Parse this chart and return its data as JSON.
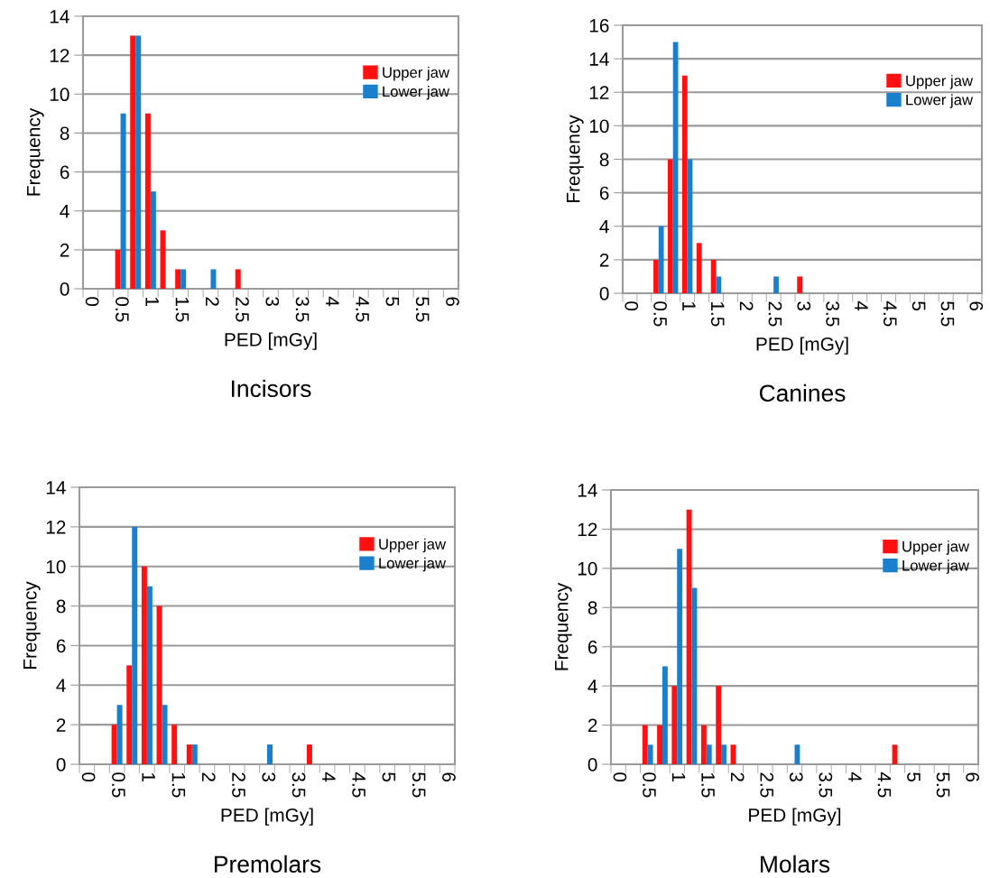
{
  "chart_data": [
    {
      "type": "bar",
      "title": "Incisors",
      "xlabel": "PED [mGy]",
      "ylabel": "Frequency",
      "categories": [
        "0",
        null,
        "0.5",
        null,
        "1",
        null,
        "1.5",
        null,
        "2",
        null,
        "2.5",
        null,
        "3",
        null,
        "3.5",
        null,
        "4",
        null,
        "4.5",
        null,
        "5",
        null,
        "5.5",
        null,
        "6"
      ],
      "ylim": [
        0,
        14
      ],
      "yticks": [
        0,
        2,
        4,
        6,
        8,
        10,
        12,
        14
      ],
      "grid": "y",
      "legend": "top right",
      "series": [
        {
          "name": "Upper jaw",
          "color": "#ff1111",
          "values": [
            0,
            0,
            2,
            13,
            9,
            3,
            1,
            0,
            0,
            0,
            1,
            0,
            0,
            0,
            0,
            0,
            0,
            0,
            0,
            0,
            0,
            0,
            0,
            0,
            0
          ]
        },
        {
          "name": "Lower jaw",
          "color": "#1a7fcc",
          "values": [
            0,
            0,
            9,
            13,
            5,
            0,
            1,
            0,
            1,
            0,
            0,
            0,
            0,
            0,
            0,
            0,
            0,
            0,
            0,
            0,
            0,
            0,
            0,
            0,
            0
          ]
        }
      ]
    },
    {
      "type": "bar",
      "title": "Canines",
      "xlabel": "PED [mGy]",
      "ylabel": "Frequency",
      "categories": [
        "0",
        null,
        "0.5",
        null,
        "1",
        null,
        "1.5",
        null,
        "2",
        null,
        "2.5",
        null,
        "3",
        null,
        "3.5",
        null,
        "4",
        null,
        "4.5",
        null,
        "5",
        null,
        "5.5",
        null,
        "6"
      ],
      "ylim": [
        0,
        16
      ],
      "yticks": [
        0,
        2,
        4,
        6,
        8,
        10,
        12,
        14,
        16
      ],
      "grid": "y",
      "legend": "top right",
      "series": [
        {
          "name": "Upper jaw",
          "color": "#ff1111",
          "values": [
            0,
            0,
            2,
            8,
            13,
            3,
            2,
            0,
            0,
            0,
            0,
            0,
            1,
            0,
            0,
            0,
            0,
            0,
            0,
            0,
            0,
            0,
            0,
            0,
            0
          ]
        },
        {
          "name": "Lower jaw",
          "color": "#1a7fcc",
          "values": [
            0,
            0,
            4,
            15,
            8,
            0,
            1,
            0,
            0,
            0,
            1,
            0,
            0,
            0,
            0,
            0,
            0,
            0,
            0,
            0,
            0,
            0,
            0,
            0,
            0
          ]
        }
      ]
    },
    {
      "type": "bar",
      "title": "Premolars",
      "xlabel": "PED [mGy]",
      "ylabel": "Frequency",
      "categories": [
        "0",
        null,
        "0.5",
        null,
        "1",
        null,
        "1.5",
        null,
        "2",
        null,
        "2.5",
        null,
        "3",
        null,
        "3.5",
        null,
        "4",
        null,
        "4.5",
        null,
        "5",
        null,
        "5.5",
        null,
        "6"
      ],
      "ylim": [
        0,
        14
      ],
      "yticks": [
        0,
        2,
        4,
        6,
        8,
        10,
        12,
        14
      ],
      "grid": "y",
      "legend": "top right",
      "series": [
        {
          "name": "Upper jaw",
          "color": "#ff1111",
          "values": [
            0,
            0,
            2,
            5,
            10,
            8,
            2,
            1,
            0,
            0,
            0,
            0,
            0,
            0,
            0,
            1,
            0,
            0,
            0,
            0,
            0,
            0,
            0,
            0,
            0
          ]
        },
        {
          "name": "Lower jaw",
          "color": "#1a7fcc",
          "values": [
            0,
            0,
            3,
            12,
            9,
            3,
            0,
            1,
            0,
            0,
            0,
            0,
            1,
            0,
            0,
            0,
            0,
            0,
            0,
            0,
            0,
            0,
            0,
            0,
            0
          ]
        }
      ]
    },
    {
      "type": "bar",
      "title": "Molars",
      "xlabel": "PED [mGy]",
      "ylabel": "Frequency",
      "categories": [
        "0",
        null,
        "0.5",
        null,
        "1",
        null,
        "1.5",
        null,
        "2",
        null,
        "2.5",
        null,
        "3",
        null,
        "3.5",
        null,
        "4",
        null,
        "4.5",
        null,
        "5",
        null,
        "5.5",
        null,
        "6"
      ],
      "ylim": [
        0,
        14
      ],
      "yticks": [
        0,
        2,
        4,
        6,
        8,
        10,
        12,
        14
      ],
      "grid": "y",
      "legend": "top right",
      "series": [
        {
          "name": "Upper jaw",
          "color": "#ff1111",
          "values": [
            0,
            0,
            2,
            2,
            4,
            13,
            2,
            4,
            1,
            0,
            0,
            0,
            0,
            0,
            0,
            0,
            0,
            0,
            0,
            1,
            0,
            0,
            0,
            0,
            0
          ]
        },
        {
          "name": "Lower jaw",
          "color": "#1a7fcc",
          "values": [
            0,
            0,
            1,
            5,
            11,
            9,
            1,
            1,
            0,
            0,
            0,
            0,
            1,
            0,
            0,
            0,
            0,
            0,
            0,
            0,
            0,
            0,
            0,
            0,
            0
          ]
        }
      ]
    }
  ]
}
